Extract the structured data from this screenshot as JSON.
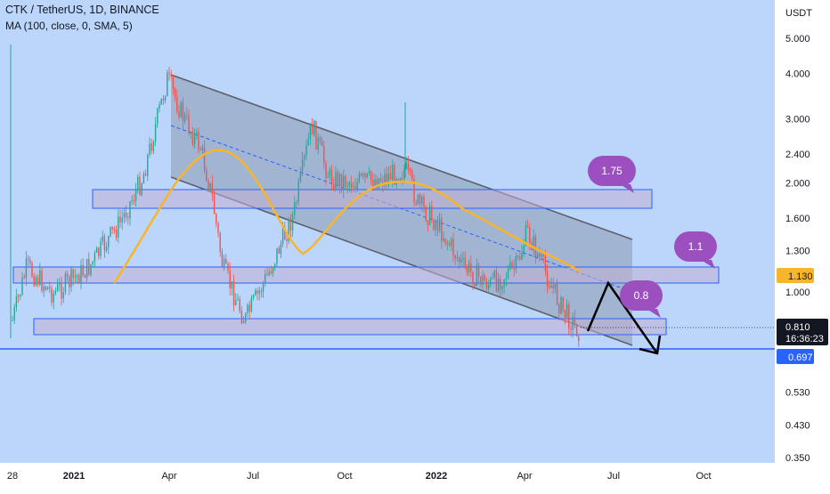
{
  "header": {
    "symbol_line": "CTK / TetherUS, 1D, BINANCE",
    "indicator_line": "MA (100, close, 0, SMA, 5)"
  },
  "chart_data": {
    "type": "candlestick",
    "title": "CTK / TetherUS, 1D, BINANCE",
    "indicator": "MA (100, close, 0, SMA, 5)",
    "y_unit": "USDT",
    "y_scale": "log",
    "ylim": [
      0.33,
      6.3
    ],
    "x_ticks": [
      "28",
      "2021",
      "Apr",
      "Jul",
      "Oct",
      "2022",
      "Apr",
      "Jul",
      "Oct"
    ],
    "y_ticks": [
      "5.000",
      "4.000",
      "3.000",
      "2.400",
      "2.000",
      "1.600",
      "1.300",
      "1.000",
      "0.530",
      "0.430",
      "0.350"
    ],
    "last_price": "0.810",
    "countdown": "16:36:23",
    "price_labels": [
      {
        "value": "1.130",
        "color": "#f7b52c"
      },
      {
        "value": "0.697",
        "color": "#2962ff"
      }
    ],
    "zone_labels": [
      "1.75",
      "1.1",
      "0.8"
    ],
    "colors": {
      "background": "#bbd6fa",
      "up": "#26a69a",
      "down": "#ef5350",
      "ma": "#f7b52c",
      "channel": "#5d606b",
      "zone_border": "#2962ff",
      "bubble": "#9c4fbf",
      "support_line": "#2962ff"
    }
  }
}
